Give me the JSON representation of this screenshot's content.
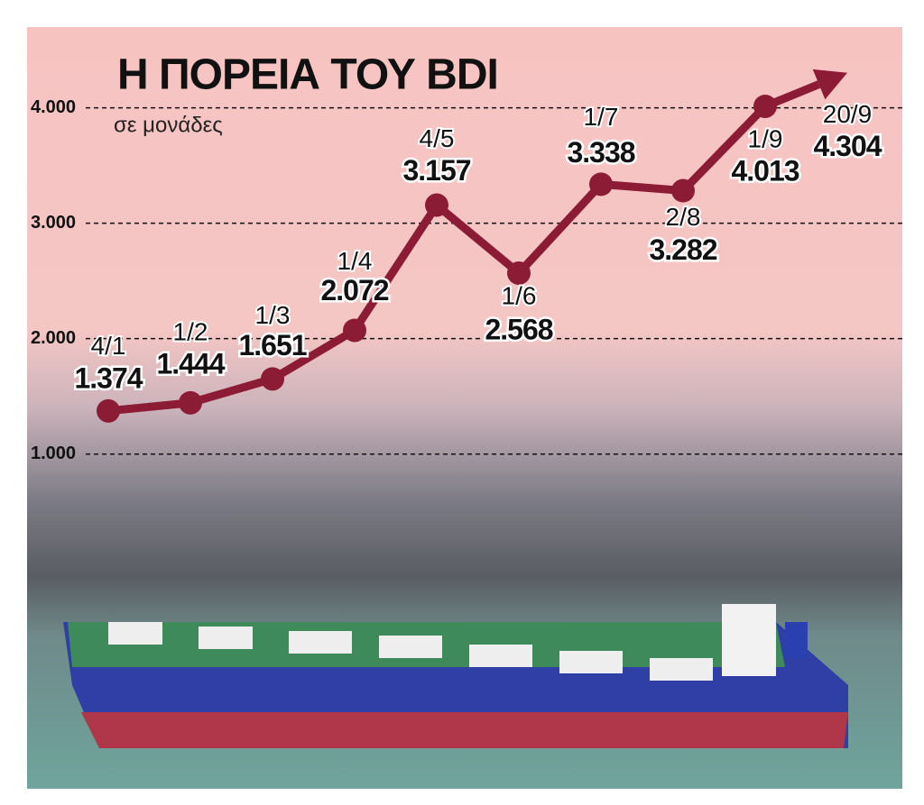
{
  "chart_data": {
    "type": "line",
    "title": "Η ΠΟΡΕΙΑ ΤΟΥ BDI",
    "subtitle": "σε μονάδες",
    "categories": [
      "4/1",
      "1/2",
      "1/3",
      "1/4",
      "4/5",
      "1/6",
      "1/7",
      "2/8",
      "1/9",
      "20/9"
    ],
    "values": [
      1374,
      1444,
      1651,
      2072,
      3157,
      2568,
      3338,
      3282,
      4013,
      4304
    ],
    "value_labels": [
      "1.374",
      "1.444",
      "1.651",
      "2.072",
      "3.157",
      "2.568",
      "3.338",
      "3.282",
      "4.013",
      "4.304"
    ],
    "color": "#8c1b35",
    "ylim": [
      -1900,
      4700
    ],
    "yticks": [
      {
        "value": 1000,
        "label": "1.000"
      },
      {
        "value": 2000,
        "label": "2.000"
      },
      {
        "value": 3000,
        "label": "3.000"
      },
      {
        "value": 4000,
        "label": "4.000"
      }
    ],
    "grid": true
  }
}
